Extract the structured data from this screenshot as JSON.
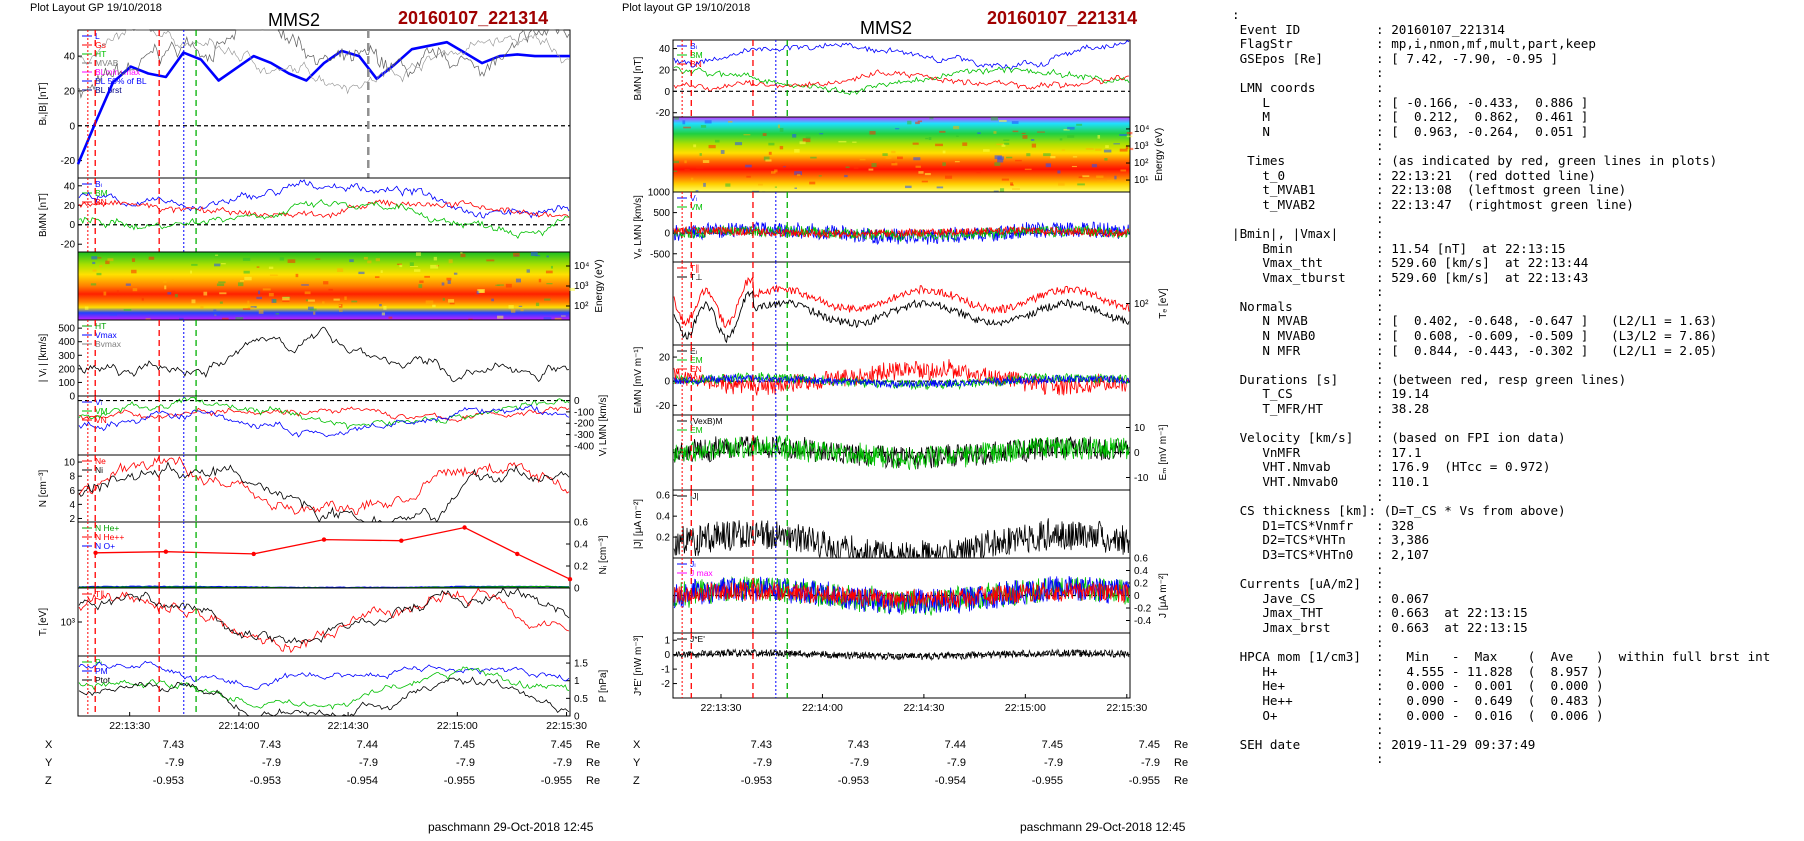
{
  "left_header": {
    "layout_label": "Plot Layout GP 19/10/2018",
    "spacecraft": "MMS2",
    "event": "20160107_221314"
  },
  "right_header": {
    "layout_label": "Plot layout GP 19/10/2018",
    "spacecraft": "MMS2",
    "event": "20160107_221314"
  },
  "footer": {
    "left": "paschmann 29-Oct-2018 12:45",
    "right": "paschmann 29-Oct-2018 12:45"
  },
  "time_ticks": [
    "22:13:30",
    "22:14:00",
    "22:14:30",
    "22:15:00",
    "22:15:30"
  ],
  "coords": {
    "unit": "Re",
    "rows": [
      {
        "label": "X",
        "values": [
          "7.43",
          "7.43",
          "7.44",
          "7.45",
          "7.45"
        ]
      },
      {
        "label": "Y",
        "values": [
          "-7.9",
          "-7.9",
          "-7.9",
          "-7.9",
          "-7.9"
        ]
      },
      {
        "label": "Z",
        "values": [
          "-0.953",
          "-0.953",
          "-0.954",
          "-0.955",
          "-0.955"
        ]
      }
    ]
  },
  "colors": {
    "event": "#a00000",
    "bl": "#0000ff",
    "bm": "#00c000",
    "bn": "#ff0000",
    "marker_red": "#ff0000",
    "marker_green": "#00b000",
    "marker_blue": "#0000ff"
  },
  "chart_data": [
    {
      "type": "line",
      "panel": "left-1",
      "ylabel": "Bₗ,|B| [nT]",
      "ylim": [
        -30,
        55
      ],
      "yticks": [
        -20,
        0,
        20,
        40
      ],
      "legend": [
        "L",
        "Gs",
        "HT",
        "MVAB",
        "BLmin+max",
        "BL 50% of BL",
        "BL brst"
      ],
      "series": [
        {
          "name": "BL",
          "color": "#0000ff",
          "x": [
            0,
            5,
            10,
            15,
            20,
            25,
            30,
            35,
            40,
            45,
            50,
            55,
            60,
            65,
            70,
            75,
            80,
            85,
            90,
            95,
            100,
            105,
            110,
            115,
            120,
            125,
            130,
            135,
            140
          ],
          "y": [
            -22,
            2,
            25,
            34,
            30,
            28,
            42,
            38,
            26,
            33,
            40,
            36,
            30,
            26,
            36,
            43,
            40,
            27,
            35,
            44,
            46,
            48,
            42,
            36,
            40,
            41,
            40,
            40,
            40
          ]
        }
      ]
    },
    {
      "type": "line",
      "panel": "left-2",
      "ylabel": "BₗMN [nT]",
      "ylim": [
        -28,
        48
      ],
      "yticks": [
        -20,
        0,
        20,
        40
      ],
      "legend": [
        "Bₗ",
        "BM",
        "BN"
      ]
    },
    {
      "type": "heatmap",
      "panel": "left-3",
      "ylabel": "Energy (eV)",
      "yticks": [
        "10⁴",
        "10³",
        "10²"
      ]
    },
    {
      "type": "line",
      "panel": "left-4",
      "ylabel": "| Vᵢ | [km/s]",
      "ylim": [
        0,
        560
      ],
      "yticks": [
        0,
        100,
        200,
        300,
        400,
        500
      ],
      "legend": [
        "HT",
        "Vmax",
        "Bvmax"
      ]
    },
    {
      "type": "line",
      "panel": "left-5",
      "ylabel": "Vᵢ LMN [km/s]",
      "ylim": [
        -480,
        40
      ],
      "yticks": [
        -400,
        -300,
        -200,
        -100,
        0
      ],
      "legend": [
        "Vₗ",
        "VM",
        "VN"
      ]
    },
    {
      "type": "line",
      "panel": "left-6",
      "ylabel": "N [cm⁻³]",
      "ylim": [
        1.5,
        11
      ],
      "yticks": [
        2,
        4,
        6,
        8,
        10
      ],
      "legend": [
        "Ne",
        "Ni"
      ]
    },
    {
      "type": "line",
      "panel": "left-7",
      "ylabel": "Nᵢ [cm⁻³]",
      "ylim": [
        0,
        0.6
      ],
      "yticks": [
        0,
        0.2,
        0.4,
        0.6
      ],
      "legend": [
        "N He+",
        "N He++",
        "N O+"
      ],
      "series": [
        {
          "name": "N He++",
          "color": "#ff0000",
          "x": [
            5,
            25,
            50,
            70,
            92,
            110,
            125,
            140
          ],
          "y": [
            0.32,
            0.33,
            0.31,
            0.44,
            0.43,
            0.55,
            0.31,
            0.08
          ]
        }
      ]
    },
    {
      "type": "line",
      "panel": "left-8",
      "ylabel": "Tᵢ [eV]",
      "yticks": [
        "10³"
      ],
      "legend": [
        "T∥"
      ]
    },
    {
      "type": "line",
      "panel": "left-9",
      "ylabel": "P [nPa]",
      "ylim": [
        0,
        1.7
      ],
      "yticks": [
        0,
        0.5,
        1.0,
        1.5
      ],
      "legend": [
        "Pₗ",
        "PM",
        "Ptot"
      ]
    },
    {
      "type": "line",
      "panel": "right-1",
      "ylabel": "BₗMN [nT]",
      "ylim": [
        -24,
        48
      ],
      "yticks": [
        -20,
        0,
        20,
        40
      ],
      "legend": [
        "Bₗ",
        "BM",
        "BN"
      ]
    },
    {
      "type": "heatmap",
      "panel": "right-2",
      "ylabel": "Energy (eV)",
      "yticks": [
        "10⁴",
        "10³",
        "10²",
        "10¹"
      ]
    },
    {
      "type": "line",
      "panel": "right-3",
      "ylabel": "Vₑ LMN [km/s]",
      "ylim": [
        -700,
        1000
      ],
      "yticks": [
        -500,
        0,
        500,
        1000
      ],
      "legend": [
        "Vₗ",
        "VM"
      ]
    },
    {
      "type": "line",
      "panel": "right-4",
      "ylabel": "Tₑ [eV]",
      "yticks": [
        "10²"
      ],
      "legend": [
        "T∥",
        "T⊥"
      ]
    },
    {
      "type": "line",
      "panel": "right-5",
      "ylabel": "EₗMN [mV m⁻¹]",
      "ylim": [
        -28,
        30
      ],
      "yticks": [
        -20,
        0,
        20
      ],
      "legend": [
        "Eₗ",
        "EM",
        "EN"
      ]
    },
    {
      "type": "line",
      "panel": "right-6",
      "ylabel": "Eₘ [mV m⁻¹]",
      "ylim": [
        -15,
        15
      ],
      "yticks": [
        -10,
        0,
        10
      ],
      "legend": [
        "(VexB)M",
        "EM"
      ]
    },
    {
      "type": "line",
      "panel": "right-7",
      "ylabel": "|J| [μA m⁻²]",
      "ylim": [
        0,
        0.65
      ],
      "yticks": [
        0.2,
        0.4,
        0.6
      ],
      "legend": [
        "|J|"
      ]
    },
    {
      "type": "line",
      "panel": "right-8",
      "ylabel": "J [μA m⁻²]",
      "ylim": [
        -0.6,
        0.6
      ],
      "yticks": [
        -0.4,
        -0.2,
        0,
        0.2,
        0.4,
        0.6
      ],
      "legend": [
        "Jₗ",
        "J max"
      ]
    },
    {
      "type": "line",
      "panel": "right-9",
      "ylabel": "J*E' [nW m⁻³]",
      "ylim": [
        -3,
        1.5
      ],
      "yticks": [
        -2,
        -1,
        0,
        1
      ],
      "legend": [
        "J*E'"
      ]
    }
  ],
  "info": [
    ":",
    " Event ID          : 20160107_221314",
    " FlagStr           : mp,i,nmon,mf,mult,part,keep",
    " GSEpos [Re]       : [ 7.42, -7.90, -0.95 ]",
    "                   :",
    " LMN coords        :",
    "    L              : [ -0.166, -0.433,  0.886 ]",
    "    M              : [  0.212,  0.862,  0.461 ]",
    "    N              : [  0.963, -0.264,  0.051 ]",
    "                   :",
    "  Times            : (as indicated by red, green lines in plots)",
    "    t_0            : 22:13:21  (red dotted line)",
    "    t_MVAB1        : 22:13:08  (leftmost green line)",
    "    t_MVAB2        : 22:13:47  (rightmost green line)",
    "                   :",
    "|Bmin|, |Vmax|     :",
    "    Bmin           : 11.54 [nT]  at 22:13:15",
    "    Vmax_tht       : 529.60 [km/s]  at 22:13:44",
    "    Vmax_tburst    : 529.60 [km/s]  at 22:13:43",
    "                   :",
    " Normals           :",
    "    N MVAB         : [  0.402, -0.648, -0.647 ]   (L2/L1 = 1.63)",
    "    N MVAB0        : [  0.608, -0.609, -0.509 ]   (L3/L2 = 7.86)",
    "    N MFR          : [  0.844, -0.443, -0.302 ]   (L2/L1 = 2.05)",
    "                   :",
    " Durations [s]     : (between red, resp green lines)",
    "    T_CS           : 19.14",
    "    T_MFR/HT       : 38.28",
    "                   :",
    " Velocity [km/s]   : (based on FPI ion data)",
    "    VnMFR          : 17.1",
    "    VHT.Nmvab      : 176.9  (HTcc = 0.972)",
    "    VHT.Nmvab0     : 110.1",
    "                   :",
    " CS thickness [km]: (D=T_CS * Vs from above)",
    "    D1=TCS*Vnmfr   : 328",
    "    D2=TCS*VHTn    : 3,386",
    "    D3=TCS*VHTn0   : 2,107",
    "                   :",
    " Currents [uA/m2]  :",
    "    Jave_CS        : 0.067",
    "    Jmax_THT       : 0.663  at 22:13:15",
    "    Jmax_brst      : 0.663  at 22:13:15",
    "                   :",
    " HPCA mom [1/cm3]  :   Min   -  Max    (  Ave   )  within full brst int",
    "    H+             :   4.555 - 11.828  (  8.957 )",
    "    He+            :   0.000 -  0.001  (  0.000 )",
    "    He++           :   0.090 -  0.649  (  0.483 )",
    "    O+             :   0.000 -  0.016  (  0.006 )",
    "                   :",
    " SEH date          : 2019-11-29 09:37:49",
    "                   :"
  ]
}
